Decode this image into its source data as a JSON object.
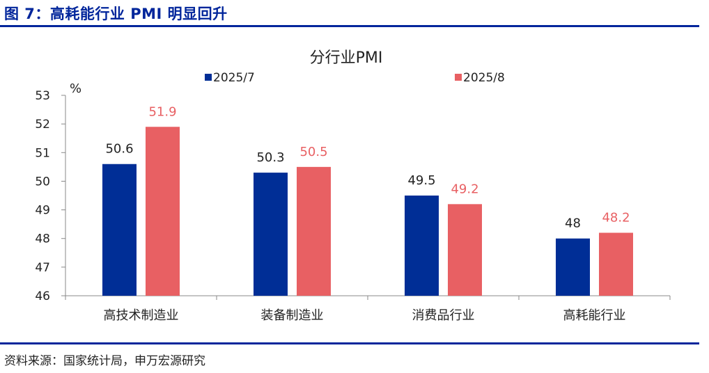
{
  "figure": {
    "title": "图 7：高耗能行业 PMI 明显回升",
    "source": "资料来源：国家统计局，申万宏源研究"
  },
  "chart_data": {
    "type": "bar",
    "title": "分行业PMI",
    "unit_label": "%",
    "categories": [
      "高技术制造业",
      "装备制造业",
      "消费品行业",
      "高耗能行业"
    ],
    "series": [
      {
        "name": "2025/7",
        "values": [
          50.6,
          50.3,
          49.5,
          48
        ],
        "labels": [
          "50.6",
          "50.3",
          "49.5",
          "48"
        ],
        "color": "#002e96"
      },
      {
        "name": "2025/8",
        "values": [
          51.9,
          50.5,
          49.2,
          48.2
        ],
        "labels": [
          "51.9",
          "50.5",
          "49.2",
          "48.2"
        ],
        "color": "#e86063"
      }
    ],
    "ylim": [
      46,
      53
    ],
    "yticks": [
      46,
      47,
      48,
      49,
      50,
      51,
      52,
      53
    ],
    "grid": false,
    "legend_position": "top"
  }
}
